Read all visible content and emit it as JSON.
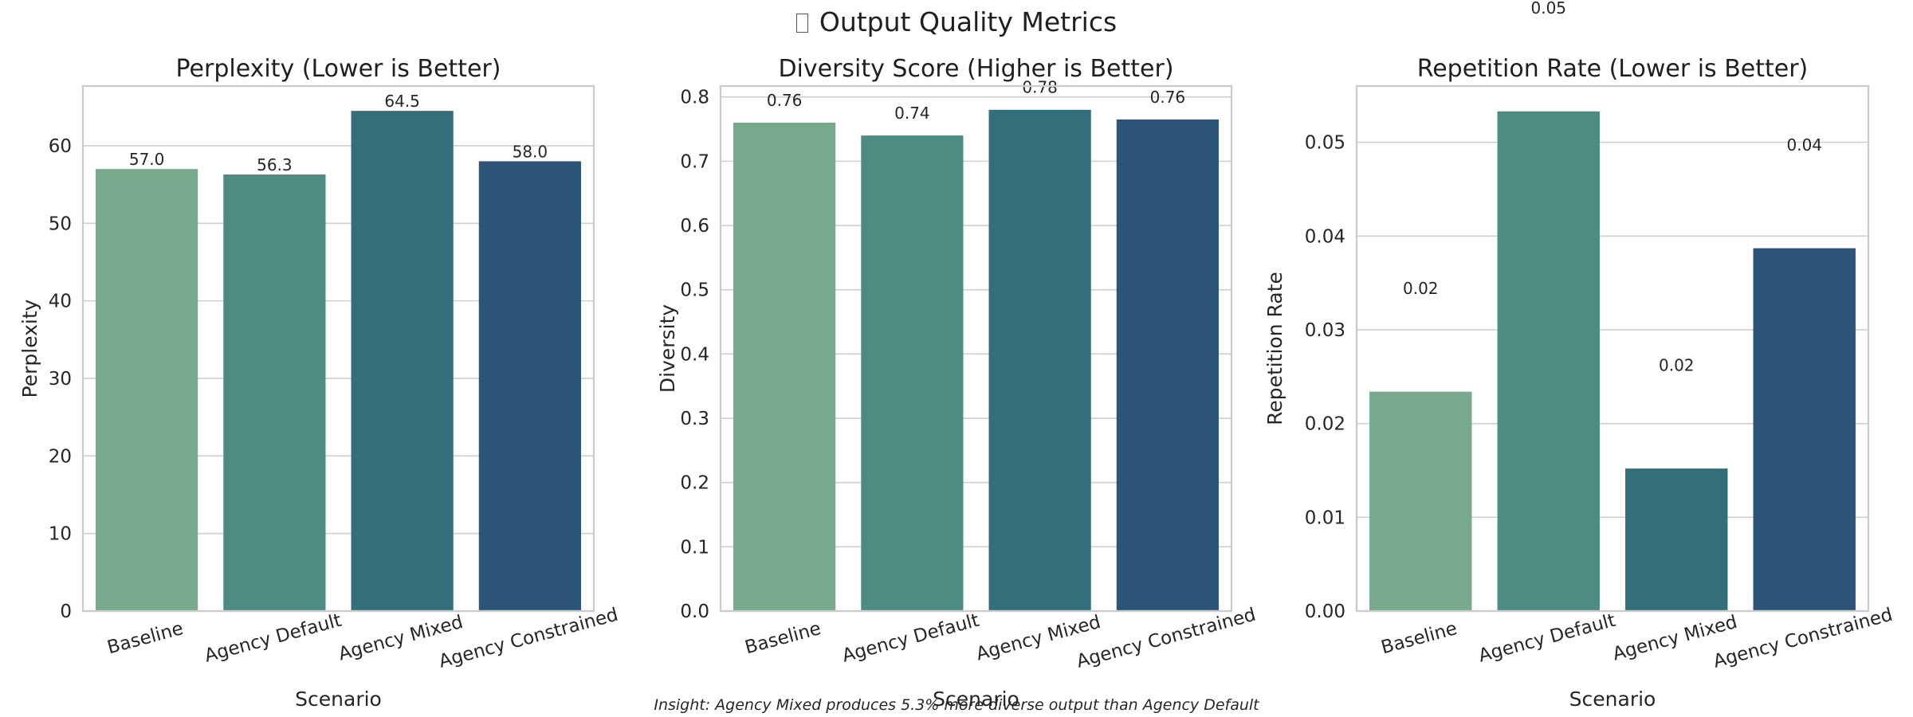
{
  "figure": {
    "title": "Output Quality Metrics",
    "title_icon": "placeholder-glyph-icon",
    "insight": "Insight: Agency Mixed produces 5.3% more diverse output than Agency Default"
  },
  "colors": {
    "palette": [
      "#79a98d",
      "#4d8b83",
      "#336e7b",
      "#2d5479"
    ],
    "grid": "#cfcfcf",
    "frame": "#cccccc",
    "text": "#262626"
  },
  "chart_data": [
    {
      "type": "bar",
      "title": "Perplexity (Lower is Better)",
      "xlabel": "Scenario",
      "ylabel": "Perplexity",
      "categories": [
        "Baseline",
        "Agency Default",
        "Agency Mixed",
        "Agency Constrained"
      ],
      "values": [
        57.0,
        56.3,
        64.5,
        58.0
      ],
      "data_labels": [
        "57.0",
        "56.3",
        "64.5",
        "58.0"
      ],
      "label_values": [
        57.0,
        56.3,
        64.5,
        58.0
      ],
      "ylim": [
        0,
        67.7
      ],
      "yticks": [
        0,
        10,
        20,
        30,
        40,
        50,
        60
      ],
      "ytick_labels": [
        "0",
        "10",
        "20",
        "30",
        "40",
        "50",
        "60"
      ],
      "grid": true
    },
    {
      "type": "bar",
      "title": "Diversity Score (Higher is Better)",
      "xlabel": "Scenario",
      "ylabel": "Diversity",
      "categories": [
        "Baseline",
        "Agency Default",
        "Agency Mixed",
        "Agency Constrained"
      ],
      "values": [
        0.76,
        0.74,
        0.78,
        0.765
      ],
      "data_labels": [
        "0.76",
        "0.74",
        "0.78",
        "0.76"
      ],
      "label_values": [
        0.78,
        0.76,
        0.8,
        0.785
      ],
      "ylim": [
        0,
        0.817
      ],
      "yticks": [
        0,
        0.1,
        0.2,
        0.3,
        0.4,
        0.5,
        0.6,
        0.7,
        0.8
      ],
      "ytick_labels": [
        "0.0",
        "0.1",
        "0.2",
        "0.3",
        "0.4",
        "0.5",
        "0.6",
        "0.7",
        "0.8"
      ],
      "grid": true
    },
    {
      "type": "bar",
      "title": "Repetition Rate (Lower is Better)",
      "xlabel": "Scenario",
      "ylabel": "Repetition Rate",
      "categories": [
        "Baseline",
        "Agency Default",
        "Agency Mixed",
        "Agency Constrained"
      ],
      "values": [
        0.0234,
        0.0533,
        0.0152,
        0.0387
      ],
      "data_labels": [
        "0.02",
        "0.05",
        "0.02",
        "0.04"
      ],
      "label_values": [
        0.0334,
        0.0633,
        0.0252,
        0.0487
      ],
      "ylim": [
        0,
        0.056
      ],
      "yticks": [
        0,
        0.01,
        0.02,
        0.03,
        0.04,
        0.05
      ],
      "ytick_labels": [
        "0.00",
        "0.01",
        "0.02",
        "0.03",
        "0.04",
        "0.05"
      ],
      "grid": true
    }
  ]
}
